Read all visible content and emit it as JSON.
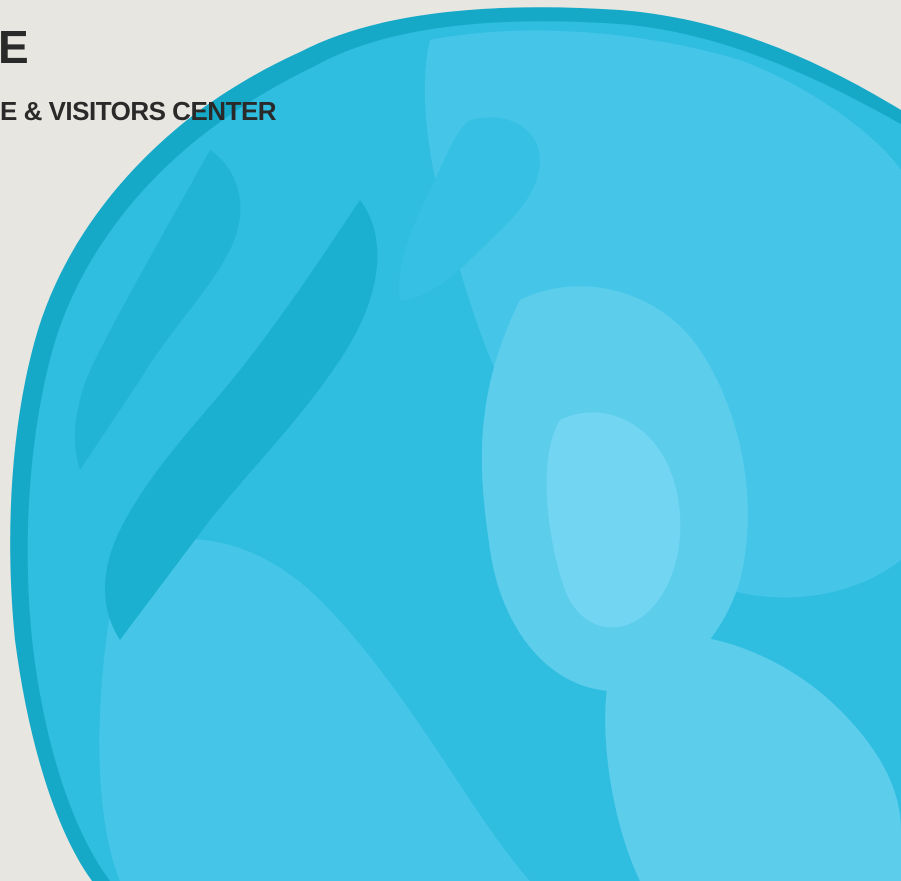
{
  "poster": {
    "heading_fragment": "E",
    "subheading_fragment": "E & VISITORS CENTER"
  },
  "artwork": {
    "icon": "watercolor-blob-icon",
    "colors": {
      "background": "#e8e6e1",
      "blob_dark": "#15a9c7",
      "blob_base": "#2fbde0",
      "blob_mid": "#45c6e8",
      "blob_light": "#5dcdec",
      "blob_highlight": "#72d5f1",
      "text": "#2a2a2a"
    }
  }
}
